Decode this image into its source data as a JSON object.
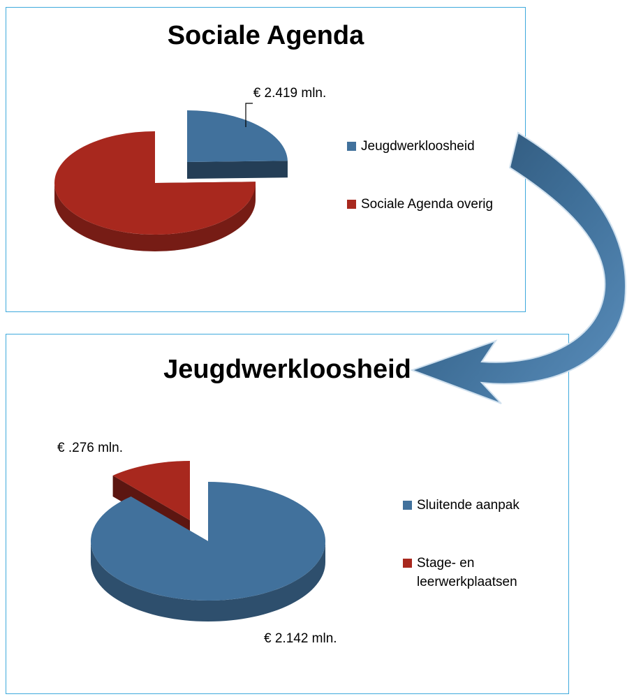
{
  "chart_data": [
    {
      "type": "pie",
      "title": "Sociale Agenda",
      "categories": [
        "Jeugdwerkloosheid",
        "Sociale Agenda overig"
      ],
      "values": [
        2.419,
        7.4
      ],
      "value_labels": [
        "€ 2.419 mln.",
        null
      ],
      "colors": [
        "#41719c",
        "#a8281e"
      ]
    },
    {
      "type": "pie",
      "title": "Jeugdwerkloosheid",
      "categories": [
        "Sluitende aanpak",
        "Stage- en leerwerkplaatsen"
      ],
      "values": [
        2.142,
        0.276
      ],
      "value_labels": [
        "€ 2.142 mln.",
        "€ .276 mln."
      ],
      "colors": [
        "#41719c",
        "#a8281e"
      ]
    }
  ]
}
